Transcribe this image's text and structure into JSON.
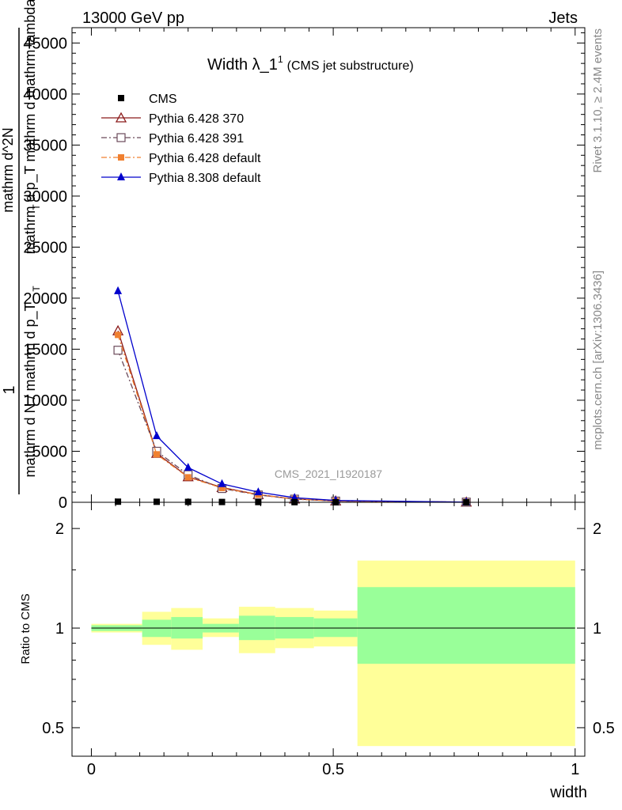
{
  "header": {
    "left": "13000 GeV pp",
    "right": "Jets"
  },
  "side_labels": {
    "rivet": "Rivet 3.1.10, ≥ 2.4M events",
    "mcplots": "mcplots.cern.ch [arXiv:1306.3436]"
  },
  "colors": {
    "cms": "#000000",
    "py370": "#8b1a1a",
    "py391": "#6b4a5a",
    "pydefault": "#f08030",
    "py8": "#0000cc",
    "band_inner": "#99ff99",
    "band_outer": "#ffff99"
  },
  "chart_data": [
    {
      "type": "line",
      "panel": "main",
      "title": "Width λ_1",
      "title_superscript": "1",
      "title_suffix": "(CMS jet substructure)",
      "watermark": "CMS_2021_I1920187",
      "xlabel": "",
      "ylabel_lines": [
        "1",
        "mathrm d N / mathrm d p_T",
        "mathrm d^2N",
        "mathrm d p_T mathrm d mathrm lambda"
      ],
      "ylabel_subscripts": [
        "T",
        "T"
      ],
      "xlim": [
        -0.04,
        1.02
      ],
      "ylim": [
        0,
        46500
      ],
      "yticks": [
        0,
        5000,
        10000,
        15000,
        20000,
        25000,
        30000,
        35000,
        40000,
        45000
      ],
      "ytick_labels": [
        "0",
        "5000",
        "10000",
        "15000",
        "20000",
        "25000",
        "30000",
        "35000",
        "40000",
        "45000"
      ],
      "legend_position": "top-left",
      "x": [
        0.055,
        0.135,
        0.2,
        0.27,
        0.345,
        0.42,
        0.505,
        0.775
      ],
      "series": [
        {
          "name": "CMS",
          "key": "cms",
          "marker": "square",
          "values": [
            60,
            50,
            40,
            30,
            25,
            15,
            8,
            2
          ]
        },
        {
          "name": "Pythia 6.428 370",
          "key": "py370",
          "marker": "triangle-open",
          "line": "solid",
          "values": [
            16800,
            4800,
            2500,
            1450,
            750,
            320,
            130,
            18
          ]
        },
        {
          "name": "Pythia 6.428 391",
          "key": "py391",
          "marker": "square-open",
          "line": "dashdot",
          "values": [
            14900,
            5000,
            2700,
            1350,
            720,
            310,
            120,
            18
          ]
        },
        {
          "name": "Pythia 6.428 default",
          "key": "pydefault",
          "marker": "square-filled",
          "line": "dashdot",
          "values": [
            16400,
            4700,
            2450,
            1400,
            740,
            315,
            125,
            18
          ]
        },
        {
          "name": "Pythia 8.308 default",
          "key": "py8",
          "marker": "triangle-filled",
          "line": "solid",
          "values": [
            20700,
            6500,
            3400,
            1800,
            1000,
            450,
            180,
            22
          ]
        }
      ]
    },
    {
      "type": "area",
      "panel": "ratio",
      "ylabel": "Ratio to CMS",
      "xlabel": "width",
      "xlim": [
        -0.04,
        1.02
      ],
      "ylim": [
        0.41,
        2.4
      ],
      "log_scale": true,
      "xticks": [
        0,
        0.5,
        1
      ],
      "xtick_labels": [
        "0",
        "0.5",
        "1"
      ],
      "yticks": [
        0.5,
        1,
        2
      ],
      "ytick_labels": [
        "0.5",
        "1",
        "2"
      ],
      "reference_line": 1,
      "bands": [
        {
          "x0": 0.0,
          "x1": 0.105,
          "inner": [
            0.98,
            1.02
          ],
          "outer": [
            0.97,
            1.03
          ]
        },
        {
          "x0": 0.105,
          "x1": 0.165,
          "inner": [
            0.94,
            1.06
          ],
          "outer": [
            0.89,
            1.12
          ]
        },
        {
          "x0": 0.165,
          "x1": 0.23,
          "inner": [
            0.93,
            1.08
          ],
          "outer": [
            0.86,
            1.15
          ]
        },
        {
          "x0": 0.23,
          "x1": 0.305,
          "inner": [
            0.97,
            1.03
          ],
          "outer": [
            0.94,
            1.07
          ]
        },
        {
          "x0": 0.305,
          "x1": 0.38,
          "inner": [
            0.92,
            1.09
          ],
          "outer": [
            0.84,
            1.16
          ]
        },
        {
          "x0": 0.38,
          "x1": 0.46,
          "inner": [
            0.93,
            1.08
          ],
          "outer": [
            0.87,
            1.15
          ]
        },
        {
          "x0": 0.46,
          "x1": 0.55,
          "inner": [
            0.94,
            1.07
          ],
          "outer": [
            0.88,
            1.13
          ]
        },
        {
          "x0": 0.55,
          "x1": 1.0,
          "inner": [
            0.78,
            1.33
          ],
          "outer": [
            0.44,
            1.6
          ]
        }
      ]
    }
  ]
}
